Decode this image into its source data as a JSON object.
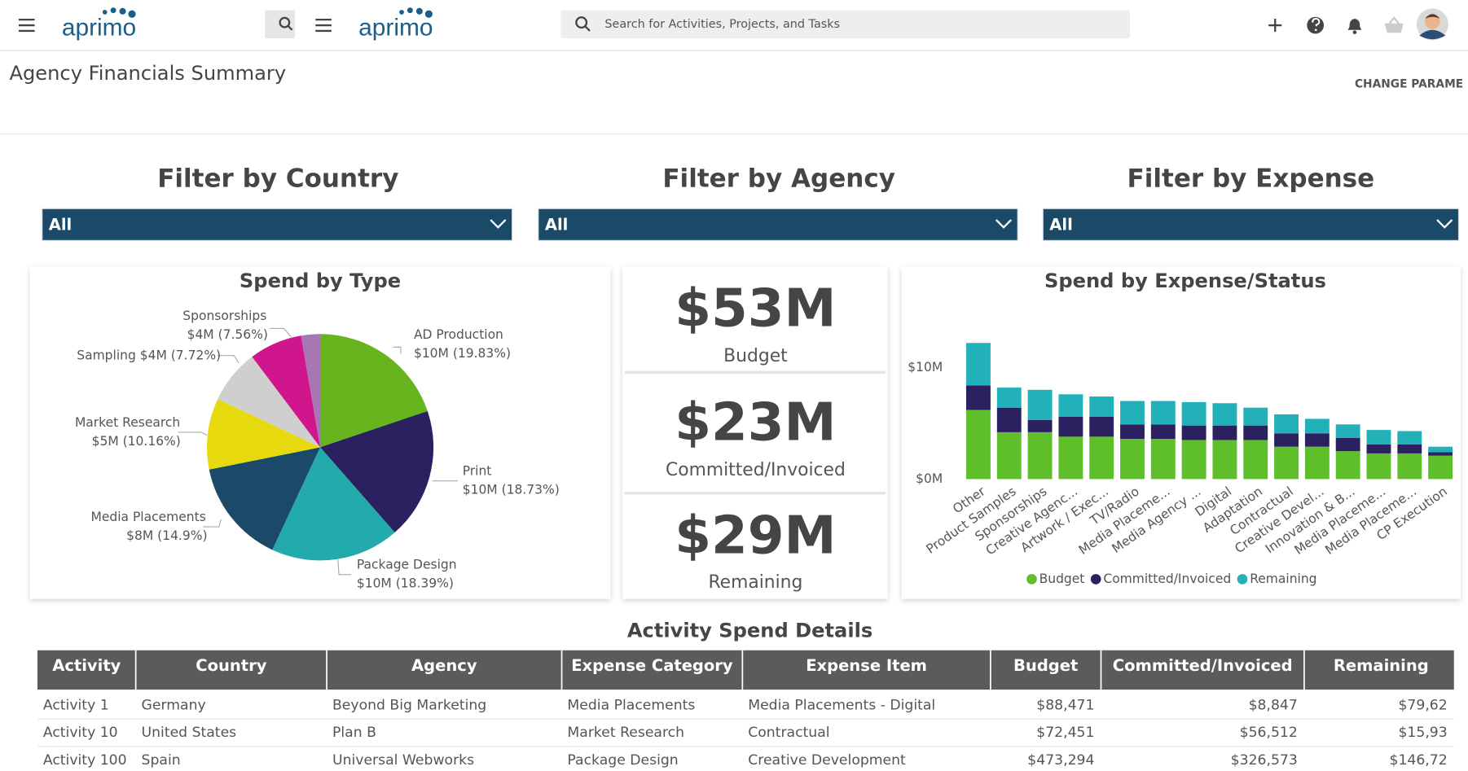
{
  "app": {
    "logo": "aprimo",
    "search_placeholder": "Search for Activities, Projects, and Tasks"
  },
  "page": {
    "title": "Agency Financials Summary",
    "action": "CHANGE PARAME"
  },
  "filters": [
    {
      "title": "Filter by Country",
      "value": "All"
    },
    {
      "title": "Filter by Agency",
      "value": "All"
    },
    {
      "title": "Filter by Expense",
      "value": "All"
    }
  ],
  "chart_data": [
    {
      "type": "pie",
      "title": "Spend by Type",
      "categories": [
        "AD Production",
        "Print",
        "Package Design",
        "Media Placements",
        "Market Research",
        "Sampling",
        "Sponsorships",
        null
      ],
      "values": [
        19.83,
        18.73,
        18.39,
        14.9,
        10.16,
        7.72,
        7.56,
        2.71
      ],
      "value_labels": [
        "$10M (19.83%)",
        "$10M (18.73%)",
        "$10M (18.39%)",
        "$8M (14.9%)",
        "$5M (10.16%)",
        "$4M (7.72%)",
        "$4M (7.56%)",
        null
      ],
      "colors": [
        "#66b51e",
        "#2b2060",
        "#23aaab",
        "#1b4a69",
        "#e6da0e",
        "#cfcfcf",
        "#cf168c",
        "#a877b3"
      ]
    },
    {
      "type": "bar",
      "stacked": true,
      "title": "Spend by Expense/Status",
      "categories": [
        "Other",
        "Product Samples",
        "Sponsorships",
        "Creative Agenc...",
        "Artwork / Exec...",
        "TV/Radio",
        "Media Placeme...",
        "Media Agency ...",
        "Digital",
        "Adaptation",
        "Contractual",
        "Creative Devel...",
        "Innovation & B...",
        "Media Placeme...",
        "Media Placeme...",
        "CP Execution"
      ],
      "series": [
        {
          "name": "Budget",
          "color": "#5fbf2b",
          "values": [
            6.2,
            4.2,
            4.2,
            3.8,
            3.8,
            3.6,
            3.6,
            3.5,
            3.5,
            3.5,
            2.9,
            2.9,
            2.5,
            2.3,
            2.3,
            2.1
          ]
        },
        {
          "name": "Committed/Invoiced",
          "color": "#2b2060",
          "values": [
            2.2,
            2.2,
            1.1,
            1.8,
            1.8,
            1.3,
            1.3,
            1.3,
            1.3,
            1.3,
            1.2,
            1.2,
            1.2,
            0.8,
            0.8,
            0.3
          ]
        },
        {
          "name": "Remaining",
          "color": "#22b1b8",
          "values": [
            3.8,
            1.8,
            2.7,
            2.0,
            1.8,
            2.1,
            2.1,
            2.1,
            2.0,
            1.6,
            1.7,
            1.3,
            1.2,
            1.3,
            1.2,
            0.5
          ]
        }
      ],
      "ylim": [
        0,
        13
      ],
      "yticks": [
        {
          "value": 0,
          "label": "$0M"
        },
        {
          "value": 10,
          "label": "$10M"
        }
      ]
    }
  ],
  "kpis": [
    {
      "value": "$53M",
      "label": "Budget"
    },
    {
      "value": "$23M",
      "label": "Committed/Invoiced"
    },
    {
      "value": "$29M",
      "label": "Remaining"
    }
  ],
  "table": {
    "title": "Activity Spend Details",
    "columns": [
      "Activity",
      "Country",
      "Agency",
      "Expense Category",
      "Expense Item",
      "Budget",
      "Committed/Invoiced",
      "Remaining"
    ],
    "rows": [
      [
        "Activity 1",
        "Germany",
        "Beyond Big Marketing",
        "Media Placements",
        "Media Placements - Digital",
        "$88,471",
        "$8,847",
        "$79,62"
      ],
      [
        "Activity 10",
        "United States",
        "Plan B",
        "Market Research",
        "Contractual",
        "$72,451",
        "$56,512",
        "$15,93"
      ],
      [
        "Activity 100",
        "Spain",
        "Universal Webworks",
        "Package Design",
        "Creative Development",
        "$473,294",
        "$326,573",
        "$146,72"
      ]
    ]
  }
}
